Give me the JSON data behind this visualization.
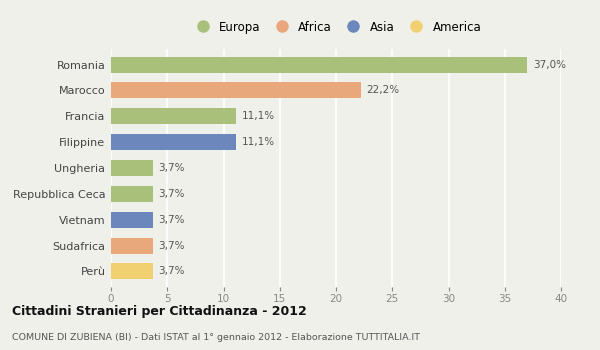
{
  "categories": [
    "Romania",
    "Marocco",
    "Francia",
    "Filippine",
    "Ungheria",
    "Repubblica Ceca",
    "Vietnam",
    "Sudafrica",
    "Perù"
  ],
  "values": [
    37.0,
    22.2,
    11.1,
    11.1,
    3.7,
    3.7,
    3.7,
    3.7,
    3.7
  ],
  "labels": [
    "37,0%",
    "22,2%",
    "11,1%",
    "11,1%",
    "3,7%",
    "3,7%",
    "3,7%",
    "3,7%",
    "3,7%"
  ],
  "continents": [
    "Europa",
    "Africa",
    "Europa",
    "Asia",
    "Europa",
    "Europa",
    "Asia",
    "Africa",
    "America"
  ],
  "colors": {
    "Europa": "#a8c07a",
    "Africa": "#e8a87c",
    "Asia": "#6b87bb",
    "America": "#f0d070"
  },
  "legend_order": [
    "Europa",
    "Africa",
    "Asia",
    "America"
  ],
  "xlim": [
    0,
    40
  ],
  "xticks": [
    0,
    5,
    10,
    15,
    20,
    25,
    30,
    35,
    40
  ],
  "title_bold": "Cittadini Stranieri per Cittadinanza - 2012",
  "subtitle": "COMUNE DI ZUBIENA (BI) - Dati ISTAT al 1° gennaio 2012 - Elaborazione TUTTITALIA.IT",
  "background_color": "#f0f0eb",
  "grid_color": "#ffffff",
  "bar_height": 0.62,
  "label_fontsize": 7.5,
  "ytick_fontsize": 8,
  "xtick_fontsize": 7.5
}
